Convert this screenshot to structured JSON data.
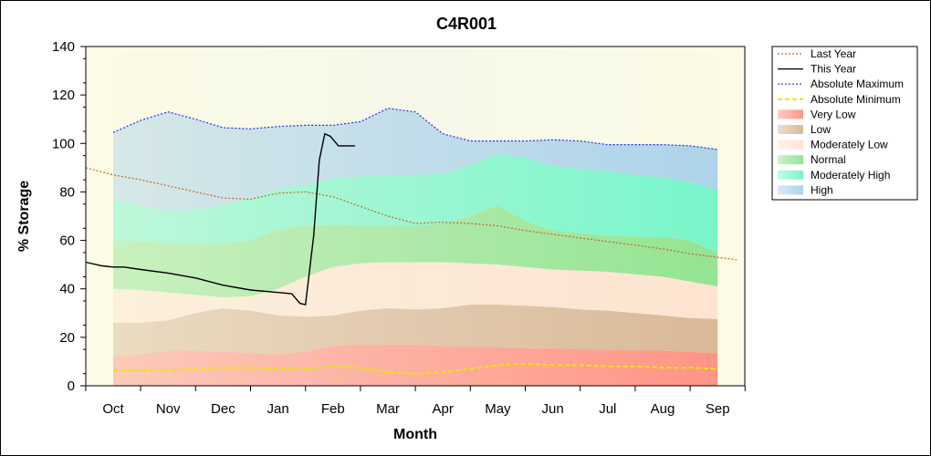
{
  "chart_data": {
    "type": "area",
    "title": "C4R001",
    "xlabel": "Month",
    "ylabel": "% Storage",
    "ylim": [
      0,
      140
    ],
    "y_ticks": [
      0,
      20,
      40,
      60,
      80,
      100,
      120,
      140
    ],
    "x_months": [
      "Oct",
      "Nov",
      "Dec",
      "Jan",
      "Feb",
      "Mar",
      "Apr",
      "May",
      "Jun",
      "Jul",
      "Aug",
      "Sep"
    ],
    "grid": false,
    "legend_position": "right",
    "legend": [
      {
        "key": "last_year",
        "label": "Last Year",
        "style": "line",
        "color": "#c8642d",
        "dash": "dotted"
      },
      {
        "key": "this_year",
        "label": "This Year",
        "style": "line",
        "color": "#000000",
        "dash": "solid"
      },
      {
        "key": "abs_max",
        "label": "Absolute Maximum",
        "style": "line",
        "color": "#1f2fe0",
        "dash": "dotted"
      },
      {
        "key": "abs_min",
        "label": "Absolute Minimum",
        "style": "line",
        "color": "#e8e800",
        "dash": "dashed"
      },
      {
        "key": "very_low",
        "label": "Very Low",
        "style": "band",
        "color": "#ff8f80"
      },
      {
        "key": "low",
        "label": "Low",
        "style": "band",
        "color": "#d8b594"
      },
      {
        "key": "moderately_low",
        "label": "Moderately Low",
        "style": "band",
        "color": "#fde3cf"
      },
      {
        "key": "normal",
        "label": "Normal",
        "style": "band",
        "color": "#8ee38e"
      },
      {
        "key": "moderately_high",
        "label": "Moderately High",
        "style": "band",
        "color": "#72f5c9"
      },
      {
        "key": "high",
        "label": "High",
        "style": "band",
        "color": "#a9d1ea"
      }
    ],
    "band_x": [
      0,
      0.5,
      1,
      1.5,
      2,
      2.5,
      3,
      3.5,
      4,
      4.5,
      5,
      5.5,
      6,
      6.5,
      7,
      7.5,
      8,
      8.5,
      9,
      9.5,
      10,
      10.5,
      11
    ],
    "band_bounds": {
      "very_low_top": [
        12,
        13,
        14.5,
        14.5,
        14,
        13.5,
        13,
        14,
        16.5,
        17,
        17,
        17,
        16.5,
        16,
        16,
        15.5,
        15.5,
        15,
        15,
        14.5,
        14.5,
        14,
        13.5
      ],
      "low_top": [
        26,
        26,
        27,
        30,
        32,
        31,
        29,
        28.5,
        29,
        31,
        32,
        31.5,
        32,
        33.5,
        33.5,
        33,
        32.5,
        31.5,
        31,
        30,
        29,
        28,
        27.5
      ],
      "moderately_low_top": [
        40,
        39.5,
        38.5,
        37.5,
        36.5,
        37,
        40,
        45,
        49,
        50.5,
        51,
        51,
        51,
        50.5,
        50,
        49,
        48,
        47.5,
        47,
        46,
        45,
        43,
        41
      ],
      "normal_top": [
        60,
        59.5,
        59,
        58.5,
        58.5,
        60,
        64.5,
        66,
        66.5,
        66,
        66,
        66,
        67,
        70,
        74.5,
        68,
        64,
        63,
        62,
        61.5,
        61.5,
        60,
        55
      ],
      "moderately_high_top": [
        77,
        74,
        72,
        72.5,
        74.5,
        77.5,
        81,
        83,
        85.5,
        86.5,
        87,
        87,
        87.5,
        91,
        95.5,
        94,
        91,
        89.5,
        88.5,
        87,
        86,
        84,
        81
      ],
      "high_top": [
        104.5,
        109.5,
        113,
        110,
        106.5,
        106,
        107,
        107.5,
        107.5,
        109,
        114.5,
        113,
        104,
        101,
        101,
        101,
        101.5,
        101,
        99.5,
        99.5,
        99.5,
        99,
        97.5
      ]
    },
    "series": [
      {
        "key": "abs_min",
        "name": "Absolute Minimum",
        "x": [
          0,
          0.5,
          1,
          1.5,
          2,
          2.5,
          3,
          3.5,
          4,
          4.5,
          5,
          5.5,
          6,
          6.5,
          7,
          7.5,
          8,
          8.5,
          9,
          9.5,
          10,
          10.5,
          11
        ],
        "values": [
          6.5,
          6.5,
          6.5,
          7,
          7.5,
          7.5,
          7,
          7,
          8,
          7.5,
          5.5,
          5,
          5.5,
          7,
          8.5,
          9,
          8.5,
          8.5,
          8,
          8,
          7.5,
          7.5,
          7
        ]
      },
      {
        "key": "last_year",
        "name": "Last Year",
        "x": [
          -0.5,
          0,
          0.5,
          1,
          1.5,
          2,
          2.5,
          3,
          3.5,
          4,
          4.5,
          5,
          5.5,
          6,
          6.5,
          7,
          7.5,
          8,
          8.5,
          9,
          9.5,
          10,
          10.5,
          11,
          11.35
        ],
        "values": [
          90,
          87,
          85,
          82.5,
          80,
          77.5,
          77,
          79.5,
          80,
          78,
          74,
          70,
          67,
          67.5,
          67,
          66,
          64,
          62.5,
          61,
          59.5,
          58,
          56.5,
          54.5,
          53,
          52
        ]
      },
      {
        "key": "this_year",
        "name": "This Year",
        "x": [
          -0.5,
          -0.2,
          0,
          0.2,
          0.5,
          1,
          1.5,
          2,
          2.5,
          3,
          3.25,
          3.4,
          3.5,
          3.65,
          3.75,
          3.85,
          3.95,
          4.1,
          4.2,
          4.4
        ],
        "values": [
          51,
          49.5,
          49,
          49,
          48,
          46.5,
          44.5,
          41.5,
          39.5,
          38.5,
          38,
          34,
          33.5,
          62,
          93,
          104,
          103,
          99,
          99,
          99
        ]
      },
      {
        "key": "abs_max",
        "name": "Absolute Maximum",
        "x": [
          0,
          0.5,
          1,
          1.5,
          2,
          2.5,
          3,
          3.5,
          4,
          4.5,
          5,
          5.5,
          6,
          6.5,
          7,
          7.5,
          8,
          8.5,
          9,
          9.5,
          10,
          10.5,
          11
        ],
        "values": [
          104.5,
          109.5,
          113,
          110,
          106.5,
          106,
          107,
          107.5,
          107.5,
          109,
          114.5,
          113,
          104,
          101,
          101,
          101,
          101.5,
          101,
          99.5,
          99.5,
          99.5,
          99,
          97.5
        ]
      }
    ]
  }
}
